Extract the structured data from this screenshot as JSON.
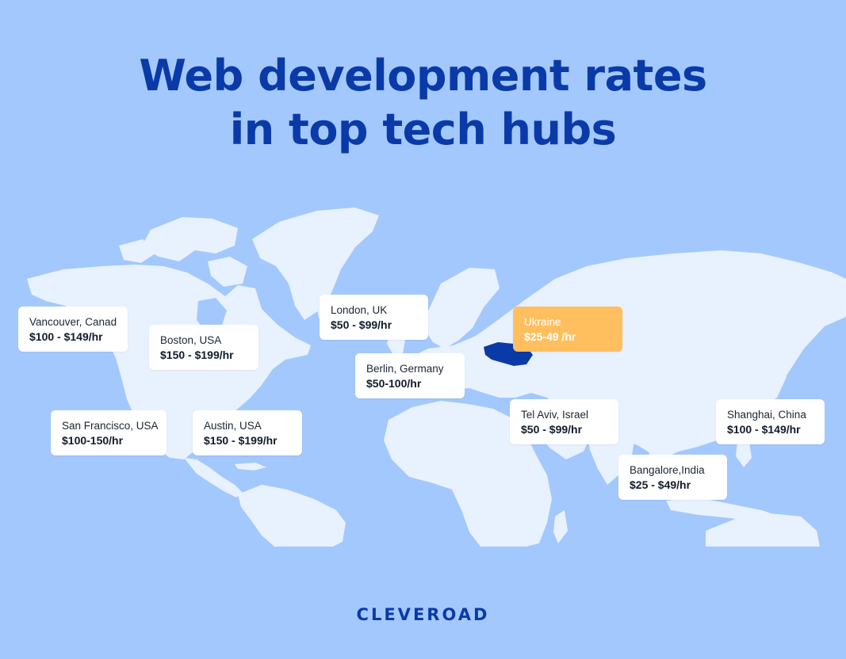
{
  "title": {
    "line1": "Web development rates",
    "line2": "in top tech hubs"
  },
  "locations": [
    {
      "id": "vancouver",
      "city": "Vancouver, Canad",
      "rate": "$100 - $149/hr",
      "highlight": false
    },
    {
      "id": "boston",
      "city": "Boston, USA",
      "rate": "$150 - $199/hr",
      "highlight": false
    },
    {
      "id": "london",
      "city": "London, UK",
      "rate": "$50 - $99/hr",
      "highlight": false
    },
    {
      "id": "ukraine",
      "city": "Ukraine",
      "rate": "$25-49 /hr",
      "highlight": true
    },
    {
      "id": "berlin",
      "city": "Berlin, Germany",
      "rate": "$50-100/hr",
      "highlight": false
    },
    {
      "id": "san-francisco",
      "city": "San Francisco, USA",
      "rate": "$100-150/hr",
      "highlight": false
    },
    {
      "id": "austin",
      "city": "Austin, USA",
      "rate": "$150 - $199/hr",
      "highlight": false
    },
    {
      "id": "tel-aviv",
      "city": "Tel Aviv, Israel",
      "rate": "$50 - $99/hr",
      "highlight": false
    },
    {
      "id": "shanghai",
      "city": "Shanghai, China",
      "rate": "$100 - $149/hr",
      "highlight": false
    },
    {
      "id": "bangalore",
      "city": "Bangalore,India",
      "rate": "$25 - $49/hr",
      "highlight": false
    }
  ],
  "colors": {
    "background": "#a3c8fd",
    "land": "#e8f1fe",
    "title": "#0a3aa8",
    "highlight_card": "#ffbf5e",
    "highlight_country": "#0a3aa8"
  },
  "logo": "CLEVEROAD"
}
